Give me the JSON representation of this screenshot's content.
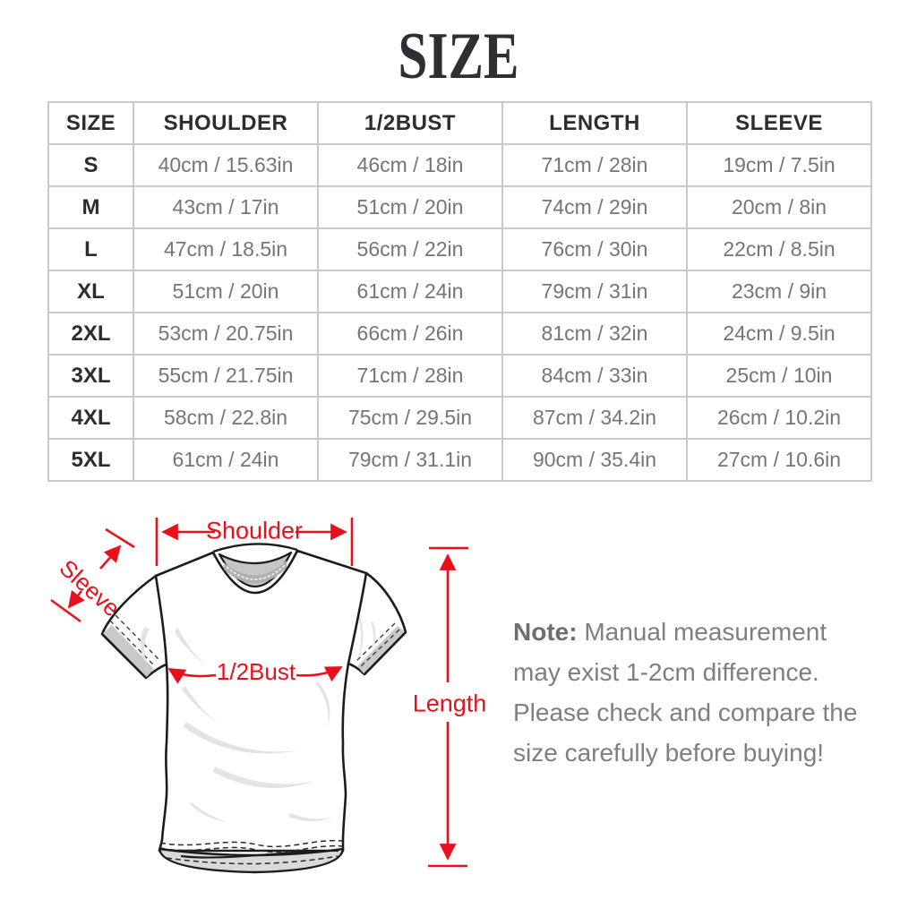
{
  "title": "SIZE",
  "colors": {
    "accent_red": "#E8111B",
    "heading_text": "#2D2D2D",
    "cell_text": "#757575",
    "table_border": "#C9C9C9",
    "note_text": "#7F7F7F"
  },
  "size_table": {
    "columns": [
      "SIZE",
      "SHOULDER",
      "1/2BUST",
      "LENGTH",
      "SLEEVE"
    ],
    "rows": [
      [
        "S",
        "40cm / 15.63in",
        "46cm / 18in",
        "71cm / 28in",
        "19cm / 7.5in"
      ],
      [
        "M",
        "43cm / 17in",
        "51cm / 20in",
        "74cm / 29in",
        "20cm / 8in"
      ],
      [
        "L",
        "47cm / 18.5in",
        "56cm / 22in",
        "76cm / 30in",
        "22cm / 8.5in"
      ],
      [
        "XL",
        "51cm / 20in",
        "61cm / 24in",
        "79cm / 31in",
        "23cm / 9in"
      ],
      [
        "2XL",
        "53cm / 20.75in",
        "66cm / 26in",
        "81cm / 32in",
        "24cm / 9.5in"
      ],
      [
        "3XL",
        "55cm / 21.75in",
        "71cm / 28in",
        "84cm / 33in",
        "25cm / 10in"
      ],
      [
        "4XL",
        "58cm / 22.8in",
        "75cm / 29.5in",
        "87cm / 34.2in",
        "26cm / 10.2in"
      ],
      [
        "5XL",
        "61cm / 24in",
        "79cm / 31.1in",
        "90cm / 35.4in",
        "27cm / 10.6in"
      ]
    ]
  },
  "diagram": {
    "shoulder_label": "Shoulder",
    "sleeve_label": "Sleeve",
    "bust_label": "1/2Bust",
    "length_label": "Length"
  },
  "note": {
    "label": "Note:",
    "body": " Manual measurement may exist 1-2cm difference. Please check and compare the size carefully before buying!"
  }
}
